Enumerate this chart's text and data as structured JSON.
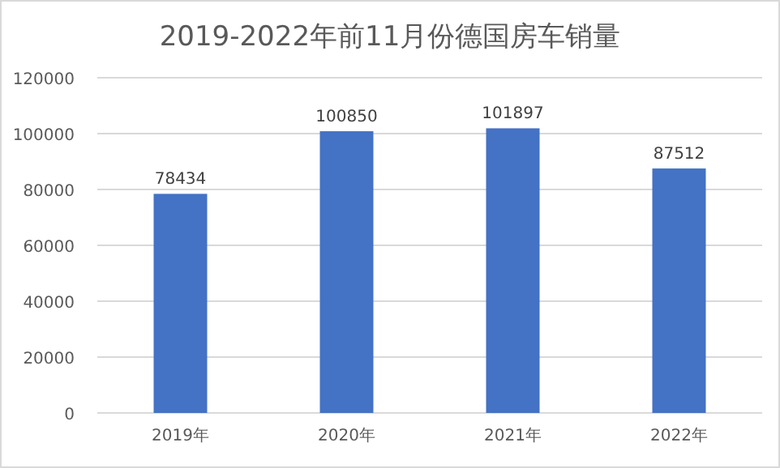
{
  "chart_data": {
    "type": "bar",
    "title": "2019-2022年前11月份德国房车销量",
    "categories": [
      "2019年",
      "2020年",
      "2021年",
      "2022年"
    ],
    "values": [
      78434,
      100850,
      101897,
      87512
    ],
    "color": "#4472c4",
    "ylim": [
      0,
      120000
    ],
    "yticks": [
      0,
      20000,
      40000,
      60000,
      80000,
      100000,
      120000
    ],
    "grid": "y",
    "data_labels": true
  }
}
